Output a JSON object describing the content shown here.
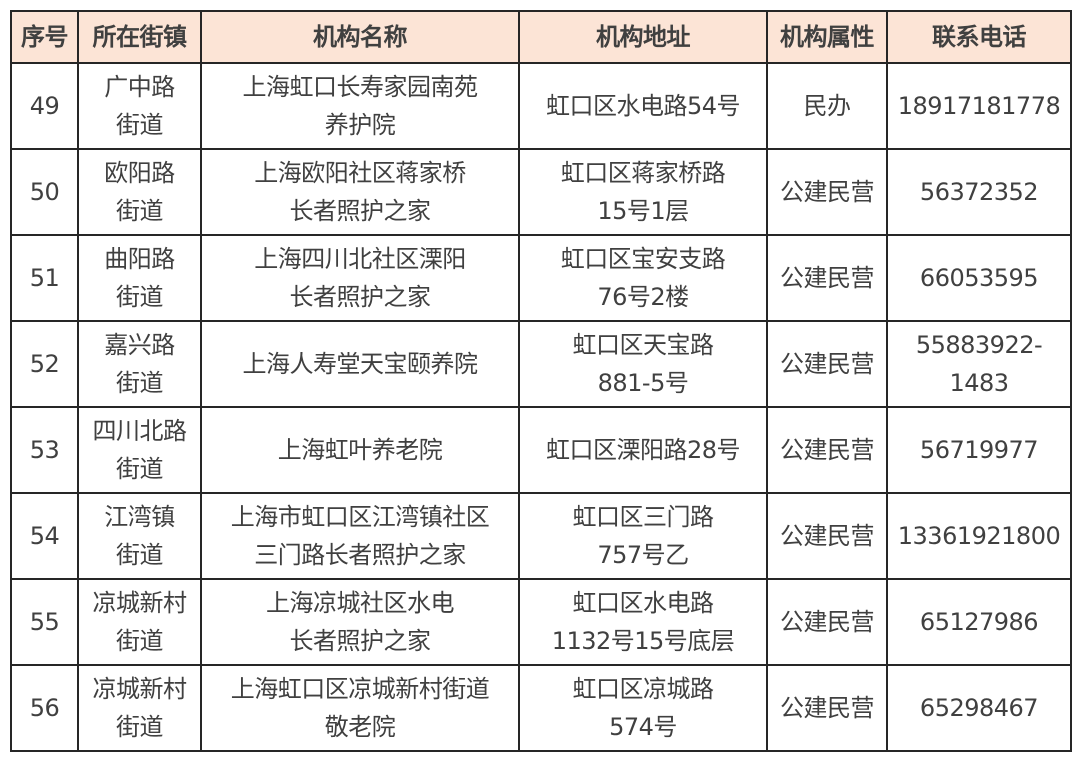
{
  "header_color": "#fce4d6",
  "headers": [
    "序号",
    "所在街镇",
    "机构名称",
    "机构地址",
    "机构属性",
    "联系电话"
  ],
  "rows": [
    [
      "49",
      "广中路\n街道",
      "上海虹口长寿家园南苑\n养护院",
      "虹口区水电路54号",
      "民办",
      "18917181778"
    ],
    [
      "50",
      "欧阳路\n街道",
      "上海欧阳社区蒋家桥\n长者照护之家",
      "虹口区蒋家桥路\n15号1层",
      "公建民营",
      "56372352"
    ],
    [
      "51",
      "曲阳路\n街道",
      "上海四川北社区溧阳\n长者照护之家",
      "虹口区宝安支路\n76号2楼",
      "公建民营",
      "66053595"
    ],
    [
      "52",
      "嘉兴路\n街道",
      "上海人寿堂天宝颐养院",
      "虹口区天宝路\n881-5号",
      "公建民营",
      "55883922-\n1483"
    ],
    [
      "53",
      "四川北路\n街道",
      "上海虹叶养老院",
      "虹口区溧阳路28号",
      "公建民营",
      "56719977"
    ],
    [
      "54",
      "江湾镇\n街道",
      "上海市虹口区江湾镇社区\n三门路长者照护之家",
      "虹口区三门路\n757号乙",
      "公建民营",
      "13361921800"
    ],
    [
      "55",
      "凉城新村\n街道",
      "上海凉城社区水电\n长者照护之家",
      "虹口区水电路\n1132号15号底层",
      "公建民营",
      "65127986"
    ],
    [
      "56",
      "凉城新村\n街道",
      "上海虹口区凉城新村街道\n敬老院",
      "虹口区凉城路\n574号",
      "公建民营",
      "65298467"
    ]
  ]
}
